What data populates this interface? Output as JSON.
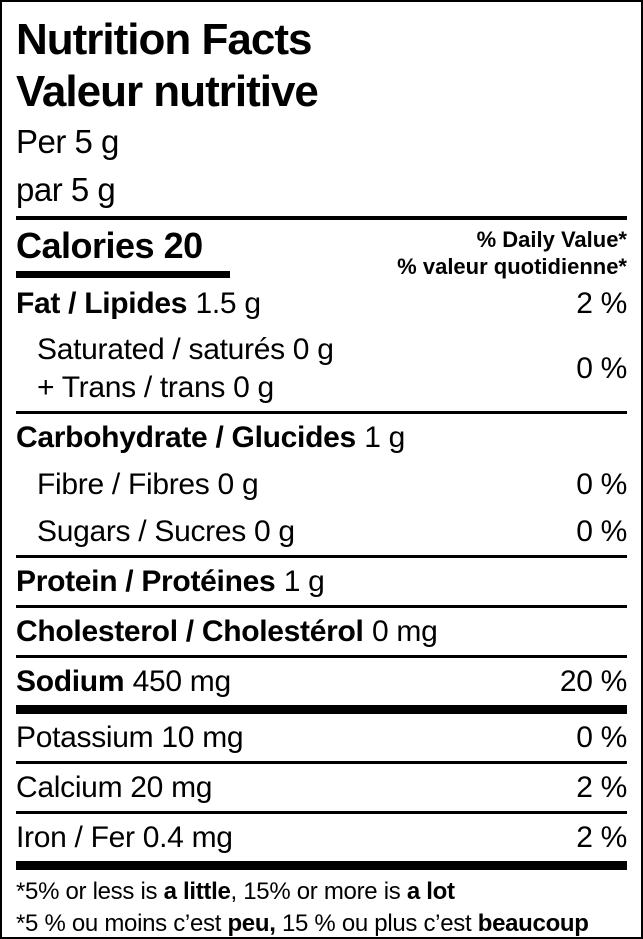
{
  "colors": {
    "text": "#000000",
    "background": "#ffffff"
  },
  "header": {
    "title_en": "Nutrition Facts",
    "title_fr": "Valeur nutritive",
    "serving_en": "Per 5 g",
    "serving_fr": "par 5 g"
  },
  "calories": {
    "line": "Calories 20",
    "daily_value_header_en": "% Daily Value*",
    "daily_value_header_fr": "% valeur quotidienne*"
  },
  "nutrients": {
    "fat": {
      "name": "Fat / Lipides",
      "amount": "1.5 g",
      "dv": "2 %"
    },
    "saturated": {
      "line1": "Saturated / saturés 0 g",
      "line2": "+ Trans / trans 0 g",
      "dv": "0 %"
    },
    "carbohydrate": {
      "name": "Carbohydrate / Glucides",
      "amount": "1 g"
    },
    "fibre": {
      "name": "Fibre / Fibres 0 g",
      "dv": "0 %"
    },
    "sugars": {
      "name": "Sugars / Sucres 0 g",
      "dv": "0 %"
    },
    "protein": {
      "name": "Protein / Protéines",
      "amount": "1 g"
    },
    "cholesterol": {
      "name": "Cholesterol / Cholestérol",
      "amount": "0 mg"
    },
    "sodium": {
      "name": "Sodium",
      "amount": "450 mg",
      "dv": "20 %"
    },
    "potassium": {
      "name": "Potassium 10 mg",
      "dv": "0 %"
    },
    "calcium": {
      "name": "Calcium 20 mg",
      "dv": "2 %"
    },
    "iron": {
      "name": "Iron / Fer 0.4 mg",
      "dv": "2 %"
    }
  },
  "footnotes": {
    "en": {
      "pre": "*5% or less is ",
      "bold1": "a little",
      "mid": ", 15% or more is ",
      "bold2": "a lot"
    },
    "fr": {
      "pre": "*5 % ou moins c’est ",
      "bold1": "peu,",
      "mid": " 15 % ou plus c’est ",
      "bold2": "beaucoup"
    }
  }
}
